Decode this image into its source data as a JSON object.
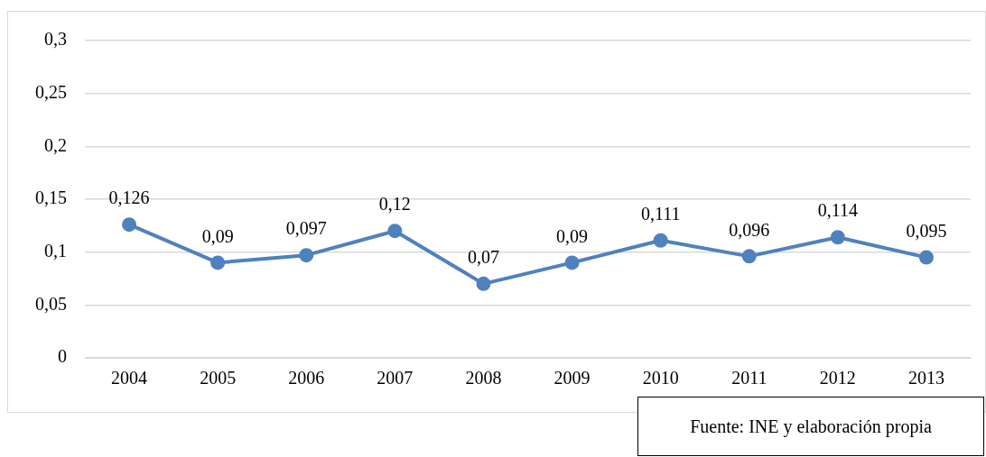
{
  "chart_data": {
    "type": "line",
    "categories": [
      "2004",
      "2005",
      "2006",
      "2007",
      "2008",
      "2009",
      "2010",
      "2011",
      "2012",
      "2013"
    ],
    "series": [
      {
        "color": "#4f81bd",
        "values": [
          0.126,
          0.09,
          0.097,
          0.12,
          0.07,
          0.09,
          0.111,
          0.096,
          0.114,
          0.095
        ],
        "value_labels": [
          "0,126",
          "0,09",
          "0,097",
          "0,12",
          "0,07",
          "0,09",
          "0,111",
          "0,096",
          "0,114",
          "0,095"
        ]
      }
    ],
    "ylim": [
      0,
      0.3
    ],
    "yticks": [
      0,
      {
        "value": 0.05,
        "label": "0,05"
      },
      {
        "value": 0.1,
        "label": "0,1"
      },
      {
        "value": 0.15,
        "label": "0,15"
      },
      {
        "value": 0.2,
        "label": "0,2"
      },
      {
        "value": 0.25,
        "label": "0,25"
      },
      {
        "value": 0.3,
        "label": "0,3"
      }
    ],
    "grid": "y",
    "legend": false,
    "marker": "circle",
    "line_style": "solid",
    "annotations": [
      "Fuente: INE y elaboración propia"
    ]
  }
}
